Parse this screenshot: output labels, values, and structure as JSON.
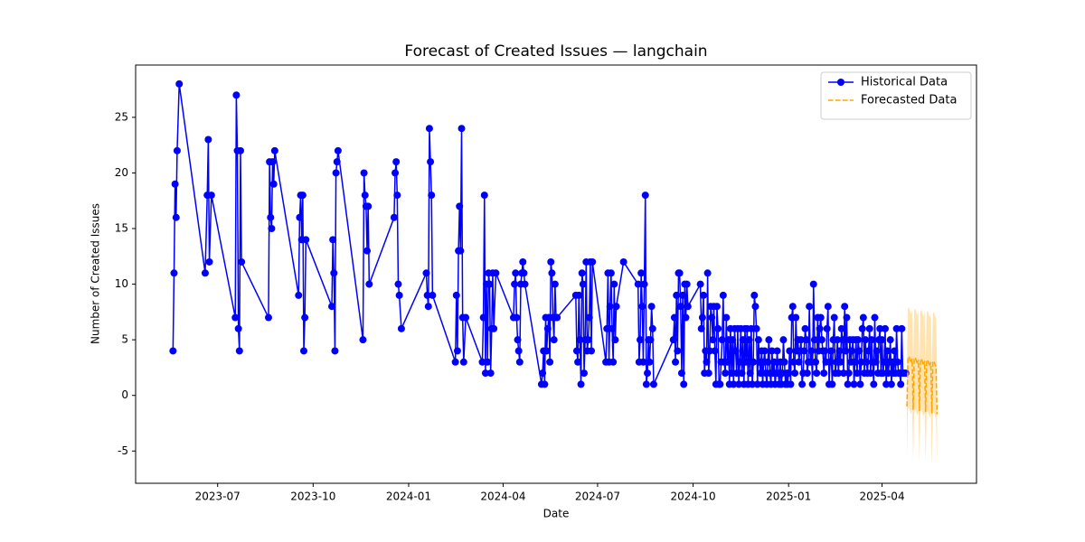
{
  "chart_data": {
    "type": "line",
    "title": "Forecast of Created Issues — langchain",
    "x_label": "Date",
    "y_label": "Number of Created Issues",
    "xlim": [
      "2023-04-13",
      "2025-07-01"
    ],
    "xticks": [
      {
        "value": "2023-07-01",
        "label": "2023-07"
      },
      {
        "value": "2023-10-01",
        "label": "2023-10"
      },
      {
        "value": "2024-01-01",
        "label": "2024-01"
      },
      {
        "value": "2024-04-01",
        "label": "2024-04"
      },
      {
        "value": "2024-07-01",
        "label": "2024-07"
      },
      {
        "value": "2024-10-01",
        "label": "2024-10"
      },
      {
        "value": "2025-01-01",
        "label": "2025-01"
      },
      {
        "value": "2025-04-01",
        "label": "2025-04"
      }
    ],
    "ylim": [
      -7.9,
      29.7
    ],
    "yticks": [
      -5,
      0,
      5,
      10,
      15,
      20,
      25
    ],
    "grid": false,
    "legend": "upper right",
    "series": [
      {
        "name": "Historical Data",
        "color": "#0000ff",
        "marker": "o",
        "linestyle": "solid",
        "x": [
          "2023-05-19",
          "2023-05-20",
          "2023-05-21",
          "2023-05-22",
          "2023-05-23",
          "2023-05-25",
          "2023-06-19",
          "2023-06-21",
          "2023-06-22",
          "2023-06-23",
          "2023-06-25",
          "2023-07-18",
          "2023-07-19",
          "2023-07-20",
          "2023-07-21",
          "2023-07-22",
          "2023-07-23",
          "2023-07-24",
          "2023-08-19",
          "2023-08-20",
          "2023-08-21",
          "2023-08-22",
          "2023-08-23",
          "2023-08-24",
          "2023-08-25",
          "2023-09-17",
          "2023-09-18",
          "2023-09-19",
          "2023-09-20",
          "2023-09-21",
          "2023-09-22",
          "2023-09-23",
          "2023-09-24",
          "2023-10-19",
          "2023-10-20",
          "2023-10-21",
          "2023-10-22",
          "2023-10-23",
          "2023-10-24",
          "2023-10-25",
          "2023-11-18",
          "2023-11-19",
          "2023-11-20",
          "2023-11-21",
          "2023-11-22",
          "2023-11-23",
          "2023-11-24",
          "2023-12-18",
          "2023-12-19",
          "2023-12-20",
          "2023-12-21",
          "2023-12-22",
          "2023-12-23",
          "2023-12-25",
          "2024-01-18",
          "2024-01-19",
          "2024-01-20",
          "2024-01-21",
          "2024-01-22",
          "2024-01-23",
          "2024-01-24",
          "2024-02-15",
          "2024-02-16",
          "2024-02-17",
          "2024-02-18",
          "2024-02-19",
          "2024-02-20",
          "2024-02-21",
          "2024-02-22",
          "2024-02-23",
          "2024-02-25",
          "2024-03-12",
          "2024-03-13",
          "2024-03-14",
          "2024-03-15",
          "2024-03-16",
          "2024-03-17",
          "2024-03-18",
          "2024-03-19",
          "2024-03-20",
          "2024-03-21",
          "2024-03-22",
          "2024-03-23",
          "2024-03-25",
          "2024-04-11",
          "2024-04-12",
          "2024-04-13",
          "2024-04-14",
          "2024-04-15",
          "2024-04-16",
          "2024-04-17",
          "2024-04-18",
          "2024-04-19",
          "2024-04-20",
          "2024-04-21",
          "2024-04-22",
          "2024-05-08",
          "2024-05-09",
          "2024-05-10",
          "2024-05-11",
          "2024-05-12",
          "2024-05-13",
          "2024-05-14",
          "2024-05-15",
          "2024-05-16",
          "2024-05-17",
          "2024-05-18",
          "2024-05-19",
          "2024-05-20",
          "2024-05-21",
          "2024-05-22",
          "2024-05-23",
          "2024-06-10",
          "2024-06-11",
          "2024-06-12",
          "2024-06-13",
          "2024-06-14",
          "2024-06-15",
          "2024-06-16",
          "2024-06-17",
          "2024-06-18",
          "2024-06-19",
          "2024-06-20",
          "2024-06-21",
          "2024-06-22",
          "2024-06-23",
          "2024-06-24",
          "2024-06-25",
          "2024-06-26",
          "2024-07-09",
          "2024-07-10",
          "2024-07-11",
          "2024-07-12",
          "2024-07-13",
          "2024-07-14",
          "2024-07-15",
          "2024-07-16",
          "2024-07-17",
          "2024-07-18",
          "2024-07-19",
          "2024-07-26",
          "2024-08-09",
          "2024-08-10",
          "2024-08-11",
          "2024-08-12",
          "2024-08-13",
          "2024-08-14",
          "2024-08-15",
          "2024-08-16",
          "2024-08-17",
          "2024-08-18",
          "2024-08-19",
          "2024-08-20",
          "2024-08-21",
          "2024-08-22",
          "2024-08-23",
          "2024-08-24",
          "2024-09-12",
          "2024-09-13",
          "2024-09-14",
          "2024-09-15",
          "2024-09-16",
          "2024-09-17",
          "2024-09-18",
          "2024-09-19",
          "2024-09-20",
          "2024-09-21",
          "2024-09-22",
          "2024-09-23",
          "2024-09-24",
          "2024-09-25",
          "2024-09-26",
          "2024-10-08",
          "2024-10-09",
          "2024-10-10",
          "2024-10-11",
          "2024-10-12",
          "2024-10-13",
          "2024-10-14",
          "2024-10-15",
          "2024-10-16",
          "2024-10-17",
          "2024-10-18",
          "2024-10-19",
          "2024-10-20",
          "2024-10-21",
          "2024-10-22",
          "2024-10-23",
          "2024-10-24",
          "2024-10-25",
          "2024-10-26",
          "2024-10-27",
          "2024-10-28",
          "2024-10-29",
          "2024-10-30",
          "2024-10-31",
          "2024-11-01",
          "2024-11-02",
          "2024-11-03",
          "2024-11-04",
          "2024-11-05",
          "2024-11-06",
          "2024-11-07",
          "2024-11-08",
          "2024-11-09",
          "2024-11-10",
          "2024-11-11",
          "2024-11-12",
          "2024-11-13",
          "2024-11-14",
          "2024-11-15",
          "2024-11-16",
          "2024-11-17",
          "2024-11-18",
          "2024-11-19",
          "2024-11-20",
          "2024-11-21",
          "2024-11-22",
          "2024-11-23",
          "2024-11-24",
          "2024-11-25",
          "2024-11-26",
          "2024-11-27",
          "2024-11-28",
          "2024-11-29",
          "2024-11-30",
          "2024-12-01",
          "2024-12-02",
          "2024-12-03",
          "2024-12-04",
          "2024-12-05",
          "2024-12-06",
          "2024-12-07",
          "2024-12-08",
          "2024-12-09",
          "2024-12-10",
          "2024-12-11",
          "2024-12-12",
          "2024-12-13",
          "2024-12-14",
          "2024-12-15",
          "2024-12-16",
          "2024-12-17",
          "2024-12-18",
          "2024-12-19",
          "2024-12-20",
          "2024-12-21",
          "2024-12-22",
          "2024-12-23",
          "2024-12-24",
          "2024-12-25",
          "2024-12-26",
          "2024-12-27",
          "2024-12-28",
          "2024-12-29",
          "2024-12-30",
          "2024-12-31",
          "2025-01-01",
          "2025-01-02",
          "2025-01-03",
          "2025-01-04",
          "2025-01-05",
          "2025-01-06",
          "2025-01-07",
          "2025-01-08",
          "2025-01-09",
          "2025-01-10",
          "2025-01-11",
          "2025-01-12",
          "2025-01-13",
          "2025-01-14",
          "2025-01-15",
          "2025-01-16",
          "2025-01-17",
          "2025-01-18",
          "2025-01-19",
          "2025-01-20",
          "2025-01-21",
          "2025-01-22",
          "2025-01-23",
          "2025-01-24",
          "2025-01-25",
          "2025-01-26",
          "2025-01-27",
          "2025-01-28",
          "2025-01-29",
          "2025-01-30",
          "2025-01-31",
          "2025-02-01",
          "2025-02-02",
          "2025-02-03",
          "2025-02-04",
          "2025-02-05",
          "2025-02-06",
          "2025-02-07",
          "2025-02-08",
          "2025-02-09",
          "2025-02-10",
          "2025-02-11",
          "2025-02-12",
          "2025-02-13",
          "2025-02-14",
          "2025-02-15",
          "2025-02-16",
          "2025-02-17",
          "2025-02-18",
          "2025-02-19",
          "2025-02-20",
          "2025-02-21",
          "2025-02-22",
          "2025-02-23",
          "2025-02-24",
          "2025-02-25",
          "2025-02-26",
          "2025-02-27",
          "2025-02-28",
          "2025-03-01",
          "2025-03-02",
          "2025-03-03",
          "2025-03-04",
          "2025-03-05",
          "2025-03-06",
          "2025-03-07",
          "2025-03-08",
          "2025-03-09",
          "2025-03-10",
          "2025-03-11",
          "2025-03-12",
          "2025-03-13",
          "2025-03-14",
          "2025-03-15",
          "2025-03-16",
          "2025-03-17",
          "2025-03-18",
          "2025-03-19",
          "2025-03-20",
          "2025-03-21",
          "2025-03-22",
          "2025-03-23",
          "2025-03-24",
          "2025-03-25",
          "2025-03-26",
          "2025-03-27",
          "2025-03-28",
          "2025-03-29",
          "2025-03-30",
          "2025-03-31",
          "2025-04-01",
          "2025-04-02",
          "2025-04-03",
          "2025-04-04",
          "2025-04-05",
          "2025-04-06",
          "2025-04-07",
          "2025-04-08",
          "2025-04-09",
          "2025-04-10",
          "2025-04-11",
          "2025-04-12",
          "2025-04-13",
          "2025-04-14",
          "2025-04-15",
          "2025-04-16",
          "2025-04-17",
          "2025-04-18",
          "2025-04-19",
          "2025-04-20",
          "2025-04-21",
          "2025-04-22",
          "2025-04-23",
          "2025-04-24"
        ],
        "values": [
          4,
          11,
          19,
          16,
          22,
          28,
          11,
          18,
          23,
          12,
          18,
          7,
          27,
          22,
          6,
          4,
          22,
          12,
          7,
          21,
          16,
          15,
          21,
          19,
          22,
          9,
          16,
          18,
          14,
          18,
          4,
          7,
          14,
          8,
          14,
          11,
          4,
          20,
          21,
          22,
          5,
          20,
          18,
          17,
          13,
          17,
          10,
          16,
          20,
          21,
          18,
          10,
          9,
          6,
          11,
          9,
          8,
          24,
          21,
          18,
          9,
          3,
          9,
          4,
          13,
          17,
          13,
          24,
          7,
          3,
          7,
          3,
          7,
          18,
          2,
          10,
          3,
          11,
          10,
          2,
          6,
          11,
          6,
          11,
          7,
          10,
          11,
          7,
          5,
          4,
          3,
          10,
          11,
          12,
          11,
          10,
          1,
          2,
          4,
          1,
          7,
          4,
          6,
          7,
          3,
          12,
          11,
          7,
          5,
          10,
          7,
          7,
          9,
          4,
          3,
          9,
          5,
          1,
          11,
          10,
          2,
          5,
          12,
          4,
          5,
          7,
          12,
          4,
          12,
          3,
          6,
          11,
          3,
          8,
          11,
          6,
          3,
          10,
          5,
          8,
          12,
          10,
          3,
          5,
          11,
          8,
          3,
          10,
          18,
          1,
          2,
          5,
          3,
          5,
          8,
          6,
          1,
          5,
          7,
          3,
          9,
          4,
          11,
          11,
          8,
          2,
          9,
          1,
          10,
          7,
          10,
          8,
          10,
          6,
          7,
          9,
          2,
          4,
          3,
          11,
          2,
          4,
          8,
          7,
          5,
          8,
          4,
          1,
          8,
          6,
          1,
          1,
          3,
          5,
          9,
          3,
          2,
          7,
          3,
          5,
          1,
          6,
          2,
          5,
          1,
          6,
          4,
          2,
          6,
          1,
          3,
          6,
          2,
          5,
          1,
          6,
          3,
          6,
          1,
          5,
          2,
          6,
          1,
          3,
          9,
          8,
          6,
          1,
          5,
          3,
          2,
          4,
          1,
          3,
          4,
          2,
          1,
          3,
          5,
          2,
          1,
          4,
          2,
          3,
          1,
          2,
          4,
          2,
          1,
          3,
          1,
          2,
          5,
          3,
          1,
          2,
          1,
          2,
          4,
          1,
          7,
          8,
          3,
          2,
          7,
          4,
          5,
          3,
          4,
          5,
          1,
          2,
          4,
          6,
          5,
          2,
          3,
          8,
          3,
          4,
          1,
          10,
          5,
          3,
          2,
          7,
          4,
          6,
          7,
          5,
          4,
          2,
          4,
          3,
          6,
          8,
          1,
          3,
          4,
          1,
          5,
          7,
          2,
          3,
          5,
          2,
          4,
          3,
          6,
          5,
          2,
          8,
          4,
          7,
          1,
          2,
          5,
          3,
          4,
          5,
          1,
          3,
          5,
          2,
          5,
          4,
          1,
          3,
          6,
          7,
          2,
          5,
          3,
          2,
          4,
          6,
          2,
          5,
          3,
          1,
          7,
          3,
          4,
          2,
          5,
          6,
          2,
          5,
          2,
          3,
          6,
          1,
          4,
          2,
          3,
          5,
          1,
          3,
          2,
          4,
          2,
          6,
          3,
          2,
          2,
          1,
          6,
          2,
          2,
          2,
          2
        ]
      },
      {
        "name": "Forecasted Data",
        "color": "#ffa500",
        "linestyle": "dashed",
        "x": [
          "2025-04-25",
          "2025-04-26",
          "2025-04-27",
          "2025-04-28",
          "2025-04-29",
          "2025-04-30",
          "2025-05-01",
          "2025-05-02",
          "2025-05-03",
          "2025-05-04",
          "2025-05-05",
          "2025-05-06",
          "2025-05-07",
          "2025-05-08",
          "2025-05-09",
          "2025-05-10",
          "2025-05-11",
          "2025-05-12",
          "2025-05-13",
          "2025-05-14",
          "2025-05-15",
          "2025-05-16",
          "2025-05-17",
          "2025-05-18",
          "2025-05-19",
          "2025-05-20",
          "2025-05-21",
          "2025-05-22",
          "2025-05-23",
          "2025-05-24"
        ],
        "values": [
          -1.0,
          3.4,
          3.5,
          3.2,
          2.9,
          3.3,
          -1.3,
          3.3,
          3.4,
          3.1,
          2.8,
          3.2,
          -1.4,
          3.2,
          3.3,
          3.0,
          2.7,
          3.1,
          -1.5,
          3.1,
          3.2,
          2.9,
          2.6,
          3.0,
          -1.6,
          3.0,
          3.1,
          2.8,
          2.5,
          -1.7
        ],
        "upper": [
          3.4,
          7.8,
          7.9,
          7.6,
          7.3,
          7.7,
          3.1,
          7.7,
          7.8,
          7.5,
          7.2,
          7.6,
          3.0,
          7.6,
          7.7,
          7.4,
          7.1,
          7.5,
          2.9,
          7.5,
          7.6,
          7.3,
          7.0,
          7.4,
          2.8,
          7.4,
          7.5,
          7.2,
          6.9,
          2.7
        ],
        "lower": [
          -5.6,
          -1.2,
          -1.1,
          -1.4,
          -1.7,
          -1.3,
          -5.9,
          -1.3,
          -1.2,
          -1.5,
          -1.8,
          -1.4,
          -6.0,
          -1.4,
          -1.3,
          -1.6,
          -1.9,
          -1.5,
          -6.1,
          -1.5,
          -1.4,
          -1.7,
          -2.0,
          -1.6,
          -6.2,
          -1.6,
          -1.5,
          -1.8,
          -2.1,
          -6.3
        ]
      }
    ]
  }
}
